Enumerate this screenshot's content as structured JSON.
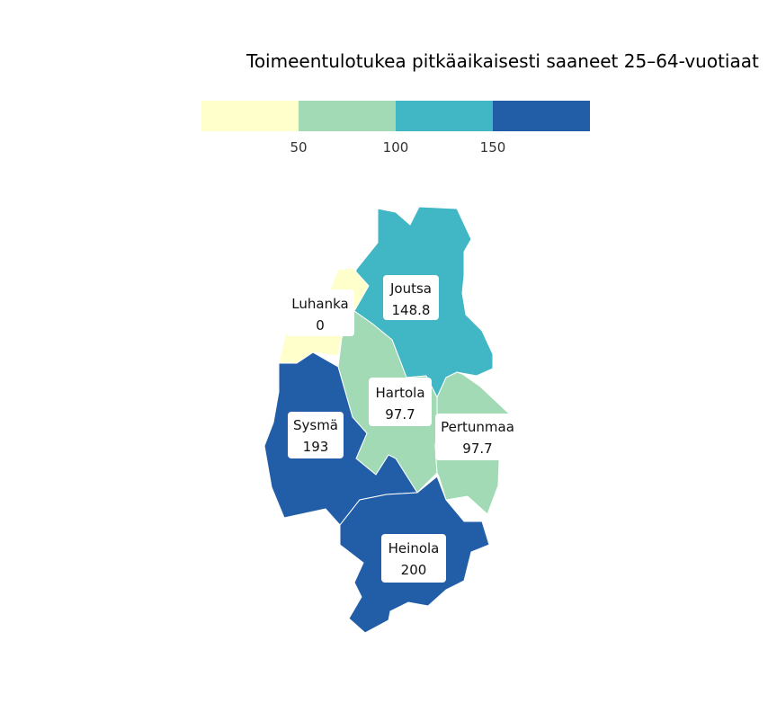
{
  "title": "Toimeentulotukea pitkäaikaisesti saaneet 25–64-vuotiaat",
  "legend": {
    "colors": [
      "#ffffcc",
      "#a1dab4",
      "#41b6c4",
      "#225ea8"
    ],
    "ticks": [
      "50",
      "100",
      "150"
    ]
  },
  "regions": [
    {
      "name": "Joutsa",
      "value": "148.8",
      "color": "#41b6c4"
    },
    {
      "name": "Luhanka",
      "value": "0",
      "color": "#ffffcc"
    },
    {
      "name": "Hartola",
      "value": "97.7",
      "color": "#a1dab4"
    },
    {
      "name": "Pertunmaa",
      "value": "97.7",
      "color": "#a1dab4"
    },
    {
      "name": "Sysmä",
      "value": "193",
      "color": "#225ea8"
    },
    {
      "name": "Heinola",
      "value": "200",
      "color": "#225ea8"
    }
  ]
}
